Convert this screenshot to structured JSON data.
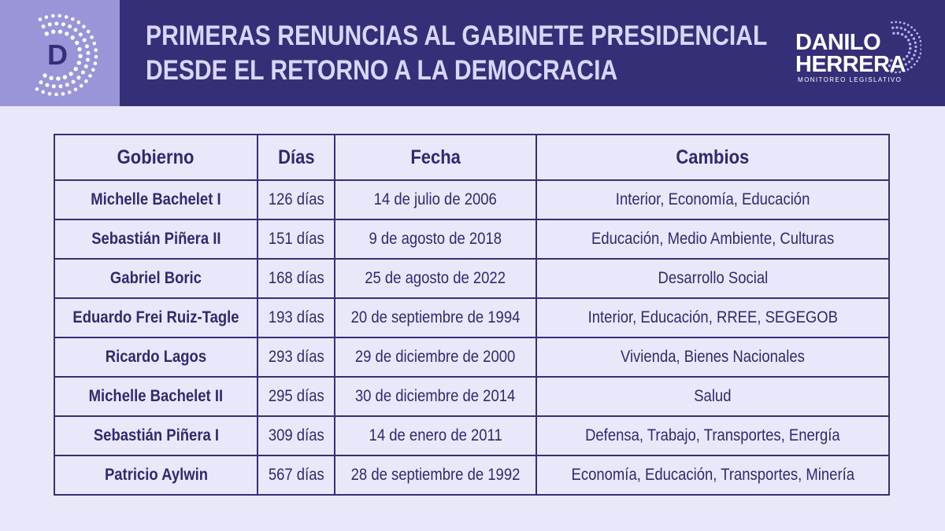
{
  "header": {
    "title_line1": "PRIMERAS RENUNCIAS AL GABINETE PRESIDENCIAL",
    "title_line2": "DESDE EL RETORNO A LA DEMOCRACIA",
    "logo_letter": "D",
    "brand_line1": "DANILO",
    "brand_line2": "HERRERA",
    "brand_sub": "MONITOREO LEGISLATIVO"
  },
  "table": {
    "headers": [
      "Gobierno",
      "Días",
      "Fecha",
      "Cambios"
    ],
    "rows": [
      [
        "Michelle Bachelet I",
        "126 días",
        "14 de julio de 2006",
        "Interior, Economía, Educación"
      ],
      [
        "Sebastián Piñera II",
        "151 días",
        "9 de agosto de 2018",
        "Educación, Medio Ambiente, Culturas"
      ],
      [
        "Gabriel Boric",
        "168 días",
        "25 de agosto de 2022",
        "Desarrollo Social"
      ],
      [
        "Eduardo Frei Ruiz-Tagle",
        "193 días",
        "20 de septiembre de 1994",
        "Interior, Educación, RREE, SEGEGOB"
      ],
      [
        "Ricardo Lagos",
        "293 días",
        "29 de diciembre de 2000",
        "Vivienda, Bienes Nacionales"
      ],
      [
        "Michelle Bachelet II",
        "295 días",
        "30 de diciembre de 2014",
        "Salud"
      ],
      [
        "Sebastián Piñera I",
        "309 días",
        "14 de enero de 2011",
        "Defensa, Trabajo, Transportes, Energía"
      ],
      [
        "Patricio Aylwin",
        "567 días",
        "28 de septiembre de 1992",
        "Economía, Educación, Transportes, Minería"
      ]
    ]
  },
  "colors": {
    "header_bg": "#352f78",
    "logo_bg": "#9a94d8",
    "page_bg": "#e9e8fb",
    "text": "#2e2a6e"
  }
}
